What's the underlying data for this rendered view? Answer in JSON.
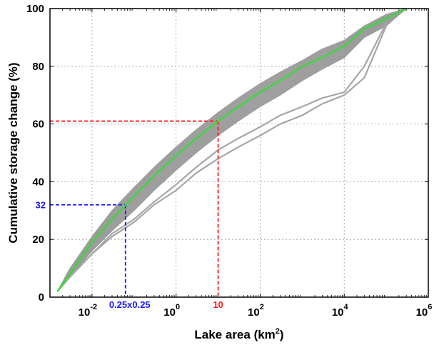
{
  "chart_data": {
    "type": "line",
    "title": "",
    "xlabel": "Lake area (km",
    "xlabel_sup": "2",
    "xlabel_close": ")",
    "ylabel": "Cumulative storage change (%)",
    "xscale": "log",
    "xlim": [
      0.001,
      1000000
    ],
    "ylim": [
      0,
      100
    ],
    "grid": true,
    "colors": {
      "ensemble": "#a6a6a6",
      "mean": "#33dd33",
      "red_ref": "#ff1a1a",
      "blue_ref": "#1a1aff",
      "grid": "#9a9a9a"
    },
    "x_ticks": [
      {
        "value": 0.01,
        "base": "10",
        "exp": "-2"
      },
      {
        "value": 1,
        "base": "10",
        "exp": "0"
      },
      {
        "value": 100,
        "base": "10",
        "exp": "2"
      },
      {
        "value": 10000,
        "base": "10",
        "exp": "4"
      },
      {
        "value": 1000000,
        "base": "10",
        "exp": "6"
      }
    ],
    "y_ticks": [
      0,
      20,
      40,
      60,
      80,
      100
    ],
    "series": [
      {
        "role": "mean",
        "x": [
          0.0015,
          0.003,
          0.01,
          0.03,
          0.1,
          0.3,
          1,
          3,
          10,
          30,
          100,
          300,
          1000,
          3000,
          10000,
          30000,
          100000,
          300000
        ],
        "y": [
          2,
          8,
          19,
          27,
          35,
          42,
          49,
          55,
          61,
          66,
          71,
          75,
          80,
          83,
          87,
          93,
          96.5,
          100
        ]
      },
      {
        "role": "ensemble-upper",
        "x": [
          0.0015,
          0.003,
          0.01,
          0.03,
          0.1,
          0.3,
          1,
          3,
          10,
          30,
          100,
          300,
          1000,
          3000,
          10000,
          30000,
          100000,
          300000
        ],
        "y": [
          2,
          10,
          21,
          30,
          38,
          45,
          52,
          58,
          64,
          69,
          74,
          78,
          82,
          86,
          89,
          94,
          98,
          100
        ]
      },
      {
        "role": "ensemble-lower",
        "x": [
          0.0015,
          0.003,
          0.01,
          0.03,
          0.1,
          0.3,
          1,
          3,
          10,
          30,
          100,
          300,
          1000,
          3000,
          10000,
          30000,
          100000,
          300000
        ],
        "y": [
          2,
          7,
          16,
          23,
          30,
          37,
          44,
          50,
          56,
          61,
          66,
          70,
          75,
          79,
          83,
          90,
          94,
          100
        ]
      },
      {
        "role": "ensemble-outlier",
        "x": [
          0.0015,
          0.003,
          0.01,
          0.03,
          0.1,
          0.3,
          1,
          3,
          10,
          30,
          100,
          300,
          1000,
          3000,
          10000,
          30000,
          100000
        ],
        "y": [
          2,
          7,
          15,
          21,
          26,
          32,
          37,
          43,
          48,
          52,
          56,
          60,
          63,
          67,
          70,
          76,
          94
        ]
      },
      {
        "role": "ensemble-outlier",
        "x": [
          0.0015,
          0.003,
          0.01,
          0.03,
          0.1,
          0.3,
          1,
          3,
          10,
          30,
          100,
          300,
          1000,
          3000,
          10000,
          30000,
          100000
        ],
        "y": [
          2,
          7,
          15,
          22,
          27,
          33,
          39,
          45,
          51,
          55,
          59,
          63,
          66,
          69,
          71,
          80,
          95
        ]
      }
    ],
    "annotations": [
      {
        "label": "10",
        "x": 10,
        "y": 61,
        "color": "red_ref"
      },
      {
        "label": "32",
        "axis": "y",
        "x": 0.0625,
        "y": 32,
        "color": "blue_ref"
      },
      {
        "label": "0.25x0.25",
        "axis": "x",
        "x": 0.0625,
        "y": 32,
        "color": "blue_ref"
      }
    ]
  }
}
